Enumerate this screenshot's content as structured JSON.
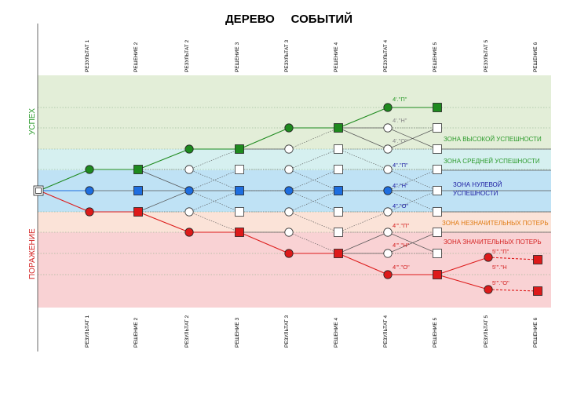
{
  "title": "ДЕРЕВО     СОБЫТИЙ",
  "columns": [
    "РЕЗУЛЬТАТ 1",
    "РЕШЕНИЕ 2",
    "РЕЗУЛЬТАТ 2",
    "РЕШЕНИЕ 3",
    "РЕЗУЛЬТАТ 3",
    "РЕШЕНИЕ 4",
    "РЕЗУЛЬТАТ 4",
    "РЕШЕНИЕ 5",
    "РЕЗУЛЬТАТ 5",
    "РЕШЕНИЕ 6"
  ],
  "side_labels": {
    "success": "УСПЕХ",
    "defeat": "ПОРАЖЕНИЕ"
  },
  "zones": [
    {
      "label": "ЗОНА ВЫСОКОЙ УСПЕШНОСТИ",
      "color": "#2a9a2a"
    },
    {
      "label": "ЗОНА СРЕДНЕЙ УСПЕШНОСТИ",
      "color": "#2a9a2a"
    },
    {
      "label": "ЗОНА НУЛЕВОЙ",
      "label2": "УСПЕШНОСТИ",
      "color": "#1a1aa0"
    },
    {
      "label": "ЗОНА НЕЗНАЧИТЕЛЬНЫХ ПОТЕРЬ",
      "color": "#e07a10"
    },
    {
      "label": "ЗОНА ЗНАЧИТЕЛЬНЫХ ПОТЕРЬ",
      "color": "#d42020"
    }
  ],
  "node_labels": [
    {
      "text": "4'.\"П\"",
      "color": "#2a9a2a"
    },
    {
      "text": "4'.\"Н\"",
      "color": "#888888"
    },
    {
      "text": "4'.\"О\"",
      "color": "#888888"
    },
    {
      "text": "4\".\"П\"",
      "color": "#1a1aa0"
    },
    {
      "text": "4\".\"Н\"",
      "color": "#1a1aa0"
    },
    {
      "text": "4\".\"О\"",
      "color": "#1a1aa0"
    },
    {
      "text": "4'''.\"П\"",
      "color": "#d42020"
    },
    {
      "text": "4'''.\"Н\"",
      "color": "#d42020"
    },
    {
      "text": "4'''.\"О\"",
      "color": "#d42020"
    },
    {
      "text": "5'''.\"П\"",
      "color": "#d42020"
    },
    {
      "text": "5'''.\"Н",
      "color": "#d42020"
    },
    {
      "text": "5'''.\"О\"",
      "color": "#d42020"
    }
  ],
  "colors": {
    "success": "#1e8a1e",
    "neutral": "#1e6ee0",
    "loss": "#dd1a1a",
    "band_success": "#e3eed8",
    "band_mid": "#d6f0f0",
    "band_neutral": "#bfe2f5",
    "band_minor": "#fbe3d8",
    "band_major": "#f9d2d4"
  }
}
